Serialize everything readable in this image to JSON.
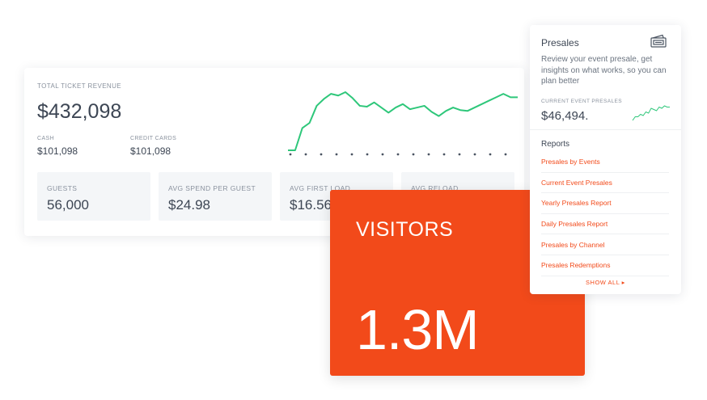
{
  "revenue": {
    "title": "TOTAL TICKET REVENUE",
    "total": "$432,098",
    "cash_label": "CASH",
    "cash_value": "$101,098",
    "credit_label": "CREDIT CARDS",
    "credit_value": "$101,098",
    "stats": [
      {
        "label": "GUESTS",
        "value": "56,000"
      },
      {
        "label": "AVG SPEND PER GUEST",
        "value": "$24.98"
      },
      {
        "label": "AVG FIRST LOAD",
        "value": "$16.56"
      },
      {
        "label": "AVG RELOAD",
        "value": ""
      }
    ],
    "sparkline": [
      0,
      0,
      26,
      32,
      52,
      60,
      66,
      64,
      68,
      61,
      52,
      51,
      56,
      50,
      44,
      50,
      54,
      48,
      50,
      52,
      45,
      40,
      46,
      50,
      47,
      46,
      50,
      54,
      58,
      62,
      66,
      62,
      62
    ],
    "line_color": "#2ec77a"
  },
  "visitors": {
    "title": "VISITORS",
    "value": "1.3M",
    "color": "#f24a1a"
  },
  "presales": {
    "title": "Presales",
    "icon": "ticket-icon",
    "description": "Review your event presale, get insights on what works, so you can plan better",
    "current_label": "CURRENT EVENT PRESALES",
    "current_value": "$46,494.",
    "mini_sparkline": [
      2,
      5,
      5,
      7,
      6,
      9,
      8,
      12,
      11,
      10,
      13,
      12,
      14,
      13,
      13
    ],
    "reports_title": "Reports",
    "reports": [
      "Presales by Events",
      "Current Event Presales",
      "Yearly Presales Report",
      "Daily Presales Report",
      "Presales by Channel",
      "Presales Redemptions"
    ],
    "show_all": "SHOW ALL ▸"
  }
}
